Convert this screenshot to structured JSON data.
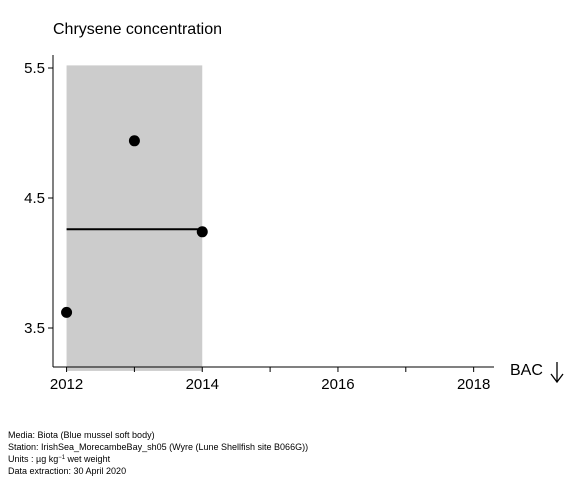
{
  "chart_data": {
    "type": "scatter",
    "title": "Chrysene concentration",
    "xlabel": "",
    "ylabel": "",
    "xlim": [
      2011.8,
      2018.3
    ],
    "ylim": [
      3.2,
      5.6
    ],
    "x_ticks": [
      2012,
      2013,
      2014,
      2015,
      2016,
      2017,
      2018
    ],
    "x_tick_labels": [
      "2012",
      "",
      "2014",
      "",
      "2016",
      "",
      "2018"
    ],
    "y_ticks": [
      3.5,
      4.5,
      5.5
    ],
    "y_tick_labels": [
      "3.5",
      "4.5",
      "5.5"
    ],
    "points": [
      {
        "x": 2012,
        "y": 3.62
      },
      {
        "x": 2013,
        "y": 4.94
      },
      {
        "x": 2014,
        "y": 4.24
      }
    ],
    "trend_line": {
      "x": [
        2012,
        2014
      ],
      "y": [
        4.26,
        4.26
      ]
    },
    "confidence_band": {
      "x": [
        2012,
        2014
      ],
      "y": [
        3.17,
        5.52
      ]
    },
    "reference_label": "BAC",
    "grid": false,
    "colors": {
      "points": "#000000",
      "band": "#cccccc",
      "trend": "#000000"
    }
  },
  "footer": {
    "media": "Media: Biota (Blue mussel soft body)",
    "station": "Station: IrishSea_MorecambeBay_sh05 (Wyre (Lune Shellfish site B066G))",
    "units_prefix": "Units : µg kg",
    "units_exponent": "−1",
    "units_suffix": " wet weight",
    "extraction": "Data extraction: 30 April 2020"
  }
}
